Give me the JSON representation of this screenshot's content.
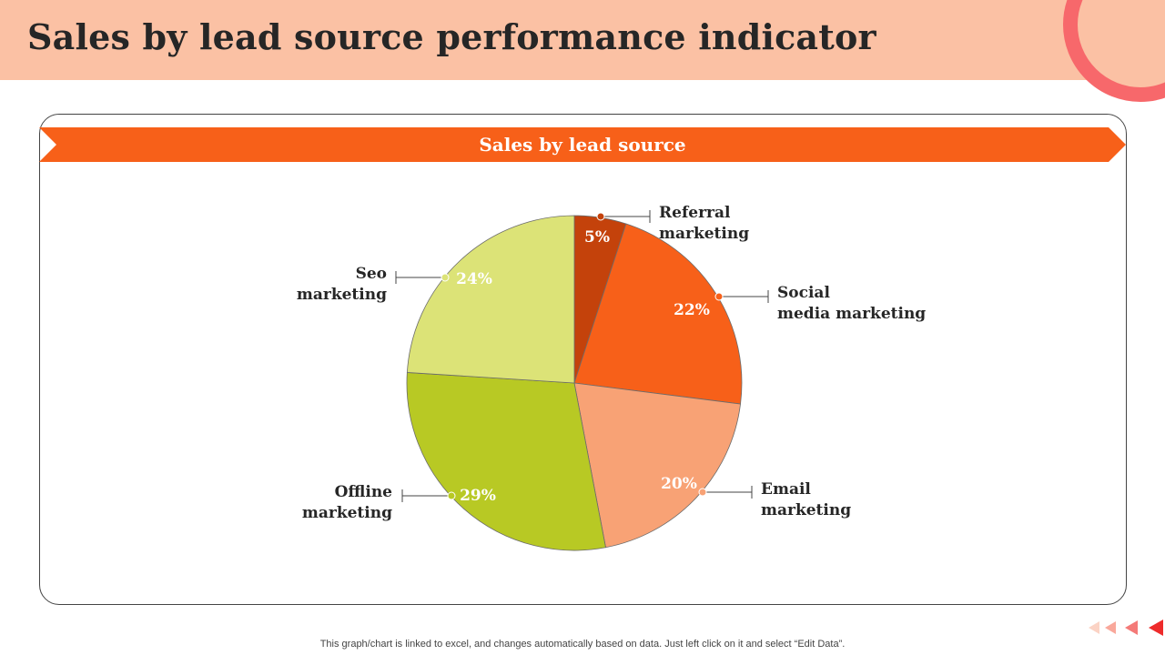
{
  "page": {
    "title": "Sales by lead source performance indicator",
    "footer_note": "This graph/chart is linked to excel,  and changes automatically based on data. Just left click on it and select “Edit Data”."
  },
  "colors": {
    "header_band": "#fbc1a4",
    "banner": "#f76019",
    "accent_ring": "#f7686b"
  },
  "chart_data": {
    "type": "pie",
    "title": "Sales by lead source",
    "unit": "%",
    "slices": [
      {
        "label_lines": [
          "Referral",
          "marketing"
        ],
        "value": 5,
        "display": "5%",
        "color": "#c4420b"
      },
      {
        "label_lines": [
          "Social",
          "media marketing"
        ],
        "value": 22,
        "display": "22%",
        "color": "#f76019"
      },
      {
        "label_lines": [
          "Email",
          "marketing"
        ],
        "value": 20,
        "display": "20%",
        "color": "#f8a275"
      },
      {
        "label_lines": [
          "Offline",
          "marketing"
        ],
        "value": 29,
        "display": "29%",
        "color": "#b8c924"
      },
      {
        "label_lines": [
          "Seo",
          "marketing"
        ],
        "value": 24,
        "display": "24%",
        "color": "#dce377"
      }
    ]
  }
}
